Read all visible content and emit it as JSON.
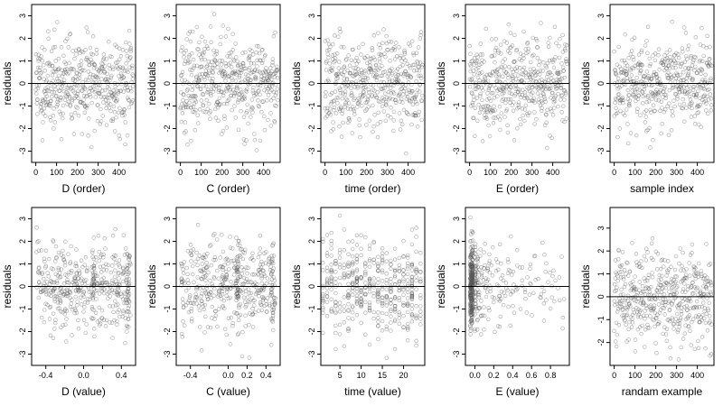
{
  "chart_data": [
    {
      "type": "scatter",
      "xlabel": "D (order)",
      "ylabel": "residuals",
      "xlim": [
        -20,
        480
      ],
      "ylim": [
        -3.5,
        3.5
      ],
      "xticks": [
        0,
        100,
        200,
        300,
        400
      ],
      "yticks": [
        -3,
        -2,
        -1,
        0,
        1,
        2,
        3
      ],
      "reference_line": 0,
      "mode": "order",
      "n": 470,
      "seed": 11
    },
    {
      "type": "scatter",
      "xlabel": "C (order)",
      "ylabel": "residuals",
      "xlim": [
        -20,
        480
      ],
      "ylim": [
        -3.5,
        3.5
      ],
      "xticks": [
        0,
        100,
        200,
        300,
        400
      ],
      "yticks": [
        -3,
        -2,
        -1,
        0,
        1,
        2,
        3
      ],
      "reference_line": 0,
      "mode": "order",
      "n": 470,
      "seed": 23
    },
    {
      "type": "scatter",
      "xlabel": "time (order)",
      "ylabel": "residuals",
      "xlim": [
        -20,
        480
      ],
      "ylim": [
        -3.5,
        3.5
      ],
      "xticks": [
        0,
        100,
        200,
        300,
        400
      ],
      "yticks": [
        -3,
        -2,
        -1,
        0,
        1,
        2,
        3
      ],
      "reference_line": 0,
      "mode": "order",
      "n": 470,
      "seed": 37
    },
    {
      "type": "scatter",
      "xlabel": "E (order)",
      "ylabel": "residuals",
      "xlim": [
        -20,
        480
      ],
      "ylim": [
        -3.5,
        3.5
      ],
      "xticks": [
        0,
        100,
        200,
        300,
        400
      ],
      "yticks": [
        -3,
        -2,
        -1,
        0,
        1,
        2,
        3
      ],
      "reference_line": 0,
      "mode": "order",
      "n": 470,
      "seed": 41
    },
    {
      "type": "scatter",
      "xlabel": "sample index",
      "ylabel": "residuals",
      "xlim": [
        -20,
        480
      ],
      "ylim": [
        -3.5,
        3.5
      ],
      "xticks": [
        0,
        100,
        200,
        300,
        400
      ],
      "yticks": [
        -3,
        -2,
        -1,
        0,
        1,
        2,
        3
      ],
      "reference_line": 0,
      "mode": "order",
      "n": 470,
      "seed": 53
    },
    {
      "type": "scatter",
      "xlabel": "D (value)",
      "ylabel": "residuals",
      "xlim": [
        -0.55,
        0.55
      ],
      "ylim": [
        -3.5,
        3.5
      ],
      "xticks": [
        -0.4,
        -0.2,
        0.0,
        0.2,
        0.4
      ],
      "xticklabels": [
        "-0.4",
        "",
        "0.0",
        "",
        "0.4"
      ],
      "yticks": [
        -3,
        -2,
        -1,
        0,
        1,
        2,
        3
      ],
      "reference_line": 0,
      "mode": "value-uniform",
      "n": 470,
      "seed": 61
    },
    {
      "type": "scatter",
      "xlabel": "C (value)",
      "ylabel": "residuals",
      "xlim": [
        -0.55,
        0.55
      ],
      "ylim": [
        -3.5,
        3.5
      ],
      "xticks": [
        -0.4,
        -0.2,
        0.0,
        0.2,
        0.4
      ],
      "xticklabels": [
        "-0.4",
        "",
        "0.0",
        "0.2",
        "0.4"
      ],
      "yticks": [
        -3,
        -2,
        -1,
        0,
        1,
        2,
        3
      ],
      "reference_line": 0,
      "mode": "value-uniform",
      "n": 470,
      "seed": 71
    },
    {
      "type": "scatter",
      "xlabel": "time (value)",
      "ylabel": "residuals",
      "xlim": [
        0.5,
        25
      ],
      "ylim": [
        -3.5,
        3.5
      ],
      "xticks": [
        5,
        10,
        15,
        20
      ],
      "yticks": [
        -3,
        -2,
        -1,
        0,
        1,
        2,
        3
      ],
      "reference_line": 0,
      "mode": "value-discrete",
      "n": 470,
      "seed": 83
    },
    {
      "type": "scatter",
      "xlabel": "E (value)",
      "ylabel": "residuals",
      "xlim": [
        -0.1,
        1.0
      ],
      "ylim": [
        -3.5,
        3.5
      ],
      "xticks": [
        0.0,
        0.2,
        0.4,
        0.6,
        0.8
      ],
      "xticklabels": [
        "0.0",
        "0.2",
        "0.4",
        "0.6",
        "0.8"
      ],
      "yticks": [
        -3,
        -2,
        -1,
        0,
        1,
        2,
        3
      ],
      "reference_line": 0,
      "mode": "value-skewed",
      "n": 470,
      "seed": 97
    },
    {
      "type": "scatter",
      "xlabel": "randam example",
      "ylabel": "residuals",
      "xlim": [
        -20,
        480
      ],
      "ylim": [
        -3,
        3.9
      ],
      "xticks": [
        0,
        100,
        200,
        300,
        400
      ],
      "yticks": [
        -2,
        -1,
        0,
        1,
        2,
        3
      ],
      "reference_line": 0,
      "mode": "order",
      "n": 470,
      "seed": 101
    }
  ]
}
